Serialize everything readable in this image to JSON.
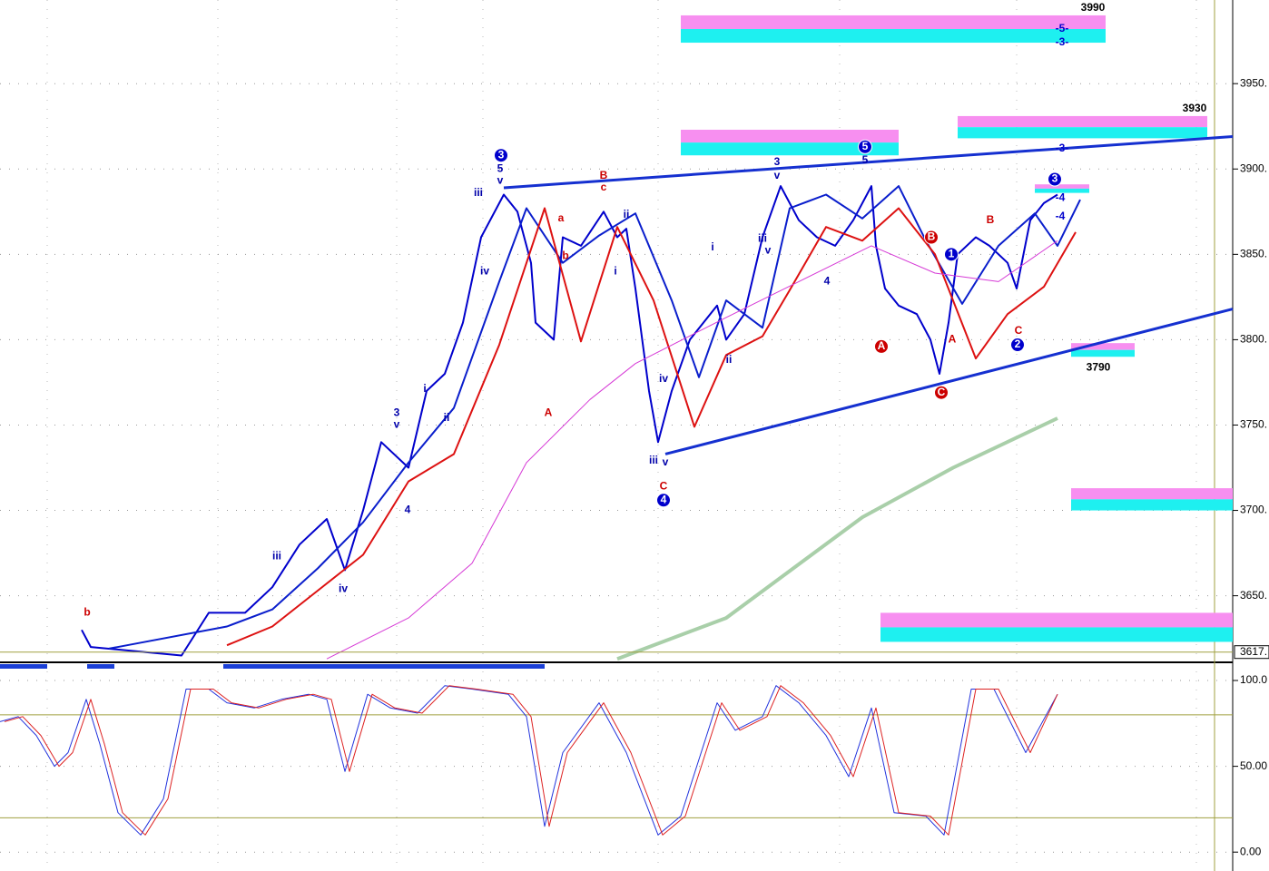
{
  "chart_data": [
    {
      "type": "line",
      "ylim": [
        3611,
        3999
      ],
      "xlim": [
        0,
        272
      ],
      "yticks": [
        {
          "value": 3650,
          "label": "3650."
        },
        {
          "value": 3700,
          "label": "3700."
        },
        {
          "value": 3750,
          "label": "3750."
        },
        {
          "value": 3800,
          "label": "3800."
        },
        {
          "value": 3850,
          "label": "3850."
        },
        {
          "value": 3900,
          "label": "3900."
        },
        {
          "value": 3950,
          "label": "3950."
        }
      ],
      "grid": true,
      "current": {
        "value": 3617,
        "label": "3617."
      },
      "series": [
        {
          "color": "#0000cc",
          "width": 2,
          "x": [
            18,
            20,
            40,
            46,
            54,
            60,
            66,
            72,
            76,
            80,
            84,
            90,
            94,
            98,
            102,
            106,
            111,
            114,
            117,
            118,
            122,
            124,
            128,
            133,
            136,
            138,
            140,
            143,
            145,
            148,
            152,
            158,
            160,
            164,
            168,
            172,
            176,
            180,
            184,
            188,
            192,
            193,
            195,
            198,
            202,
            205,
            207,
            209,
            211,
            215,
            218,
            222,
            224,
            227,
            230,
            233
          ],
          "values": [
            3630,
            3620,
            3615,
            3640,
            3640,
            3655,
            3680,
            3695,
            3665,
            3700,
            3740,
            3725,
            3770,
            3780,
            3810,
            3860,
            3885,
            3875,
            3845,
            3810,
            3800,
            3860,
            3855,
            3875,
            3860,
            3865,
            3830,
            3770,
            3740,
            3770,
            3800,
            3820,
            3800,
            3815,
            3860,
            3890,
            3870,
            3860,
            3855,
            3870,
            3890,
            3855,
            3830,
            3820,
            3815,
            3800,
            3780,
            3810,
            3850,
            3860,
            3855,
            3845,
            3830,
            3870,
            3880,
            3885
          ]
        },
        {
          "color": "#0a1ecc",
          "width": 2,
          "x": [
            24,
            28,
            50,
            60,
            70,
            80,
            90,
            100,
            110,
            116,
            124,
            132,
            140,
            148,
            154,
            160,
            168,
            174,
            182,
            190,
            198,
            204,
            212,
            220,
            228,
            233,
            238
          ],
          "values": [
            3619,
            3621,
            3632,
            3642,
            3666,
            3693,
            3728,
            3760,
            3834,
            3877,
            3845,
            3861,
            3874,
            3823,
            3778,
            3823,
            3807,
            3877,
            3885,
            3871,
            3890,
            3858,
            3821,
            3855,
            3874,
            3855,
            3882
          ]
        },
        {
          "color": "#dd1111",
          "width": 2,
          "x": [
            50,
            60,
            70,
            80,
            90,
            100,
            110,
            120,
            128,
            136,
            144,
            153,
            160,
            168,
            174,
            182,
            190,
            198,
            206,
            215,
            222,
            230,
            237
          ],
          "values": [
            3621,
            3632,
            3653,
            3674,
            3717,
            3733,
            3797,
            3877,
            3799,
            3866,
            3823,
            3749,
            3791,
            3802,
            3829,
            3866,
            3858,
            3877,
            3850,
            3789,
            3815,
            3831,
            3863
          ]
        },
        {
          "color": "#d63ad6",
          "width": 1,
          "x": [
            72,
            90,
            104,
            116,
            130,
            140,
            160,
            176,
            192,
            206,
            220,
            233
          ],
          "values": [
            3613,
            3637,
            3669,
            3728,
            3765,
            3786,
            3813,
            3834,
            3855,
            3839,
            3834,
            3858
          ]
        },
        {
          "color": "#a9cfa9",
          "width": 4,
          "x": [
            136,
            160,
            190,
            210,
            233
          ],
          "values": [
            3613,
            3637,
            3696,
            3725,
            3754
          ]
        }
      ],
      "trendlines": [
        {
          "x": [
            111,
            272
          ],
          "y": [
            3889,
            3919
          ]
        },
        {
          "x": [
            146.6,
            272
          ],
          "y": [
            3733,
            3818
          ]
        }
      ],
      "zones": [
        {
          "x": [
            150,
            243.6
          ],
          "top": 3990,
          "bottom": 3974,
          "label": 3990
        },
        {
          "x": [
            150,
            198
          ],
          "top": 3923,
          "bottom": 3908
        },
        {
          "x": [
            211,
            266
          ],
          "top": 3931,
          "bottom": 3918,
          "label": 3930
        },
        {
          "x": [
            228,
            240
          ],
          "top": 3891,
          "bottom": 3886
        },
        {
          "x": [
            236,
            250
          ],
          "top": 3798,
          "bottom": 3790,
          "label": 3790
        },
        {
          "x": [
            236,
            272
          ],
          "top": 3713,
          "bottom": 3700
        },
        {
          "x": [
            194,
            272
          ],
          "top": 3640,
          "bottom": 3623
        }
      ],
      "annotations": [
        {
          "text": "b",
          "x": 19.2,
          "y": 3640,
          "color": "#cc0000"
        },
        {
          "text": "iii",
          "x": 61,
          "y": 3673,
          "color": "#0000aa"
        },
        {
          "text": "iv",
          "x": 75.6,
          "y": 3654,
          "color": "#0000aa"
        },
        {
          "text": "3",
          "x": 87.4,
          "y": 3757,
          "color": "#0000aa"
        },
        {
          "text": "v",
          "x": 87.4,
          "y": 3750,
          "color": "#0000aa"
        },
        {
          "text": "4",
          "x": 89.8,
          "y": 3700,
          "color": "#0000aa"
        },
        {
          "text": "i",
          "x": 93.6,
          "y": 3771,
          "color": "#0000aa"
        },
        {
          "text": "ii",
          "x": 98.4,
          "y": 3754,
          "color": "#0000aa"
        },
        {
          "text": "3",
          "x": 110.4,
          "y": 3908,
          "color": "#0000cc",
          "circled": true
        },
        {
          "text": "5",
          "x": 110.2,
          "y": 3900,
          "color": "#0000aa"
        },
        {
          "text": "v",
          "x": 110.2,
          "y": 3893,
          "color": "#0000aa"
        },
        {
          "text": "iii",
          "x": 105.4,
          "y": 3886,
          "color": "#0000aa"
        },
        {
          "text": "iv",
          "x": 106.8,
          "y": 3840,
          "color": "#0000aa"
        },
        {
          "text": "B",
          "x": 133,
          "y": 3896,
          "color": "#cc0000"
        },
        {
          "text": "c",
          "x": 133,
          "y": 3889,
          "color": "#cc0000"
        },
        {
          "text": "a",
          "x": 123.6,
          "y": 3871,
          "color": "#cc0000"
        },
        {
          "text": "b",
          "x": 124.6,
          "y": 3849,
          "color": "#cc0000"
        },
        {
          "text": "A",
          "x": 120.8,
          "y": 3757,
          "color": "#cc0000"
        },
        {
          "text": "ii",
          "x": 138,
          "y": 3873,
          "color": "#0000aa"
        },
        {
          "text": "i",
          "x": 135.6,
          "y": 3840,
          "color": "#0000aa"
        },
        {
          "text": "iv",
          "x": 146.2,
          "y": 3777,
          "color": "#0000aa"
        },
        {
          "text": "iii",
          "x": 144,
          "y": 3729,
          "color": "#0000aa"
        },
        {
          "text": "v",
          "x": 146.6,
          "y": 3728,
          "color": "#0000aa"
        },
        {
          "text": "C",
          "x": 146.2,
          "y": 3714,
          "color": "#cc0000"
        },
        {
          "text": "4",
          "x": 146.2,
          "y": 3706,
          "color": "#0000cc",
          "circled": true
        },
        {
          "text": "i",
          "x": 157,
          "y": 3854,
          "color": "#0000aa"
        },
        {
          "text": "ii",
          "x": 160.6,
          "y": 3788,
          "color": "#0000aa"
        },
        {
          "text": "iii",
          "x": 168,
          "y": 3859,
          "color": "#0000aa"
        },
        {
          "text": "v",
          "x": 169.2,
          "y": 3852,
          "color": "#0000aa"
        },
        {
          "text": "3",
          "x": 171.2,
          "y": 3904,
          "color": "#0000aa"
        },
        {
          "text": "v",
          "x": 171.2,
          "y": 3896,
          "color": "#0000aa"
        },
        {
          "text": "4",
          "x": 182.2,
          "y": 3834,
          "color": "#0000aa"
        },
        {
          "text": "5",
          "x": 190.6,
          "y": 3913,
          "color": "#0000cc",
          "circled": true
        },
        {
          "text": "5",
          "x": 190.6,
          "y": 3905,
          "color": "#0000aa"
        },
        {
          "text": "A",
          "x": 194.2,
          "y": 3796,
          "color": "#cc0000",
          "circled": true
        },
        {
          "text": "B",
          "x": 205.2,
          "y": 3860,
          "color": "#cc0000",
          "circled": true
        },
        {
          "text": "C",
          "x": 207.4,
          "y": 3769,
          "color": "#cc0000",
          "circled": true
        },
        {
          "text": "A",
          "x": 209.8,
          "y": 3800,
          "color": "#cc0000"
        },
        {
          "text": "1",
          "x": 209.6,
          "y": 3850,
          "color": "#0000cc",
          "circled": true
        },
        {
          "text": "B",
          "x": 218.2,
          "y": 3870,
          "color": "#cc0000"
        },
        {
          "text": "C",
          "x": 224.4,
          "y": 3805,
          "color": "#cc0000"
        },
        {
          "text": "2",
          "x": 224.2,
          "y": 3797,
          "color": "#0000cc",
          "circled": true
        },
        {
          "text": "3",
          "x": 232.4,
          "y": 3894,
          "color": "#0000cc",
          "circled": true
        },
        {
          "text": "-5-",
          "x": 234,
          "y": 3982,
          "color": "#0000cc"
        },
        {
          "text": "-3-",
          "x": 234,
          "y": 3974,
          "color": "#0000cc"
        },
        {
          "text": "-3-",
          "x": 234,
          "y": 3912,
          "color": "#0000cc"
        },
        {
          "text": "-4",
          "x": 233.6,
          "y": 3883,
          "color": "#0000cc"
        },
        {
          "text": "-4",
          "x": 233.6,
          "y": 3872,
          "color": "#0000cc"
        }
      ]
    },
    {
      "type": "line",
      "ylim": [
        -11,
        109
      ],
      "xlim": [
        0,
        272
      ],
      "yticks": [
        {
          "value": 0,
          "label": "0.00"
        },
        {
          "value": 50,
          "label": "50.00"
        },
        {
          "value": 100,
          "label": "100.0"
        }
      ],
      "grid": true,
      "reference_lines": [
        20,
        80
      ],
      "series": [
        {
          "color": "#2233dd",
          "width": 1,
          "x": [
            0,
            4,
            8,
            12,
            15,
            19,
            22,
            26,
            31,
            36,
            41,
            46,
            50,
            56,
            62,
            68,
            72,
            76,
            81,
            86,
            92,
            98,
            104,
            112,
            116,
            120,
            124,
            132,
            138,
            145,
            150,
            158,
            162,
            168,
            171,
            176,
            182,
            187,
            192,
            197,
            204,
            208,
            214,
            219,
            226,
            233
          ],
          "values": [
            76,
            79,
            68,
            50,
            58,
            89,
            63,
            23,
            10,
            31,
            95,
            95,
            87,
            84,
            89,
            92,
            89,
            47,
            92,
            84,
            81,
            97,
            95,
            92,
            79,
            15,
            58,
            87,
            58,
            10,
            21,
            87,
            71,
            79,
            97,
            87,
            68,
            44,
            84,
            23,
            21,
            10,
            95,
            95,
            58,
            92
          ]
        },
        {
          "color": "#dd2222",
          "width": 1,
          "x": [
            1,
            5,
            9,
            13,
            16,
            20,
            23,
            27,
            32,
            37,
            42,
            47,
            51,
            57,
            63,
            69,
            73,
            77,
            82,
            87,
            93,
            99,
            105,
            113,
            117,
            121,
            125,
            133,
            139,
            146,
            151,
            159,
            163,
            169,
            172,
            177,
            183,
            188,
            193,
            198,
            205,
            209,
            215,
            220,
            227,
            233
          ],
          "values": [
            76,
            79,
            68,
            50,
            58,
            89,
            63,
            23,
            10,
            31,
            95,
            95,
            87,
            84,
            89,
            92,
            89,
            47,
            92,
            84,
            81,
            97,
            95,
            92,
            79,
            15,
            58,
            87,
            58,
            10,
            21,
            87,
            71,
            79,
            97,
            87,
            68,
            44,
            84,
            23,
            21,
            10,
            95,
            95,
            58,
            92
          ]
        }
      ]
    }
  ]
}
